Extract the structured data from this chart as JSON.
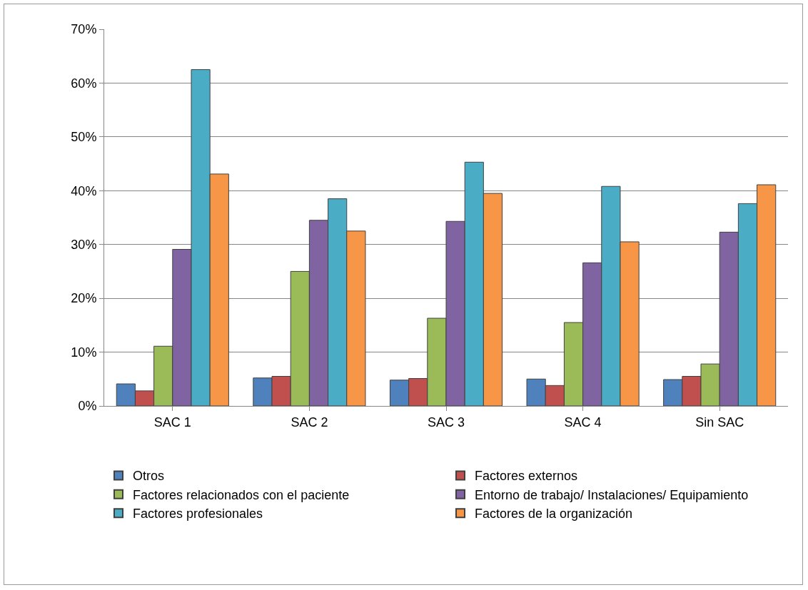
{
  "chart_data": {
    "type": "bar",
    "categories": [
      "SAC 1",
      "SAC 2",
      "SAC 3",
      "SAC 4",
      "Sin SAC"
    ],
    "series": [
      {
        "name": "Otros",
        "color": "#4f81bd",
        "values": [
          4.1,
          5.2,
          4.8,
          5.0,
          4.9
        ]
      },
      {
        "name": "Factores externos",
        "color": "#c0504d",
        "values": [
          2.8,
          5.5,
          5.1,
          3.8,
          5.5
        ]
      },
      {
        "name": "Factores relacionados con el paciente",
        "color": "#9bbb59",
        "values": [
          11.1,
          25.0,
          16.3,
          15.5,
          7.8
        ]
      },
      {
        "name": "Entorno de trabajo/ Instalaciones/ Equipamiento",
        "color": "#8064a2",
        "values": [
          29.1,
          34.5,
          34.3,
          26.6,
          32.3
        ]
      },
      {
        "name": "Factores profesionales",
        "color": "#4bacc6",
        "values": [
          62.5,
          38.5,
          45.3,
          40.8,
          37.6
        ]
      },
      {
        "name": "Factores de la organización",
        "color": "#f79646",
        "values": [
          43.1,
          32.5,
          39.5,
          30.5,
          41.1
        ]
      }
    ],
    "ylim": [
      0,
      70
    ],
    "yticks": [
      {
        "value": 0,
        "label": "0%"
      },
      {
        "value": 10,
        "label": "10%"
      },
      {
        "value": 20,
        "label": "20%"
      },
      {
        "value": 30,
        "label": "30%"
      },
      {
        "value": 40,
        "label": "40%"
      },
      {
        "value": 50,
        "label": "50%"
      },
      {
        "value": 60,
        "label": "60%"
      },
      {
        "value": 70,
        "label": "70%"
      }
    ],
    "grid": "y",
    "legend": "bottom"
  }
}
